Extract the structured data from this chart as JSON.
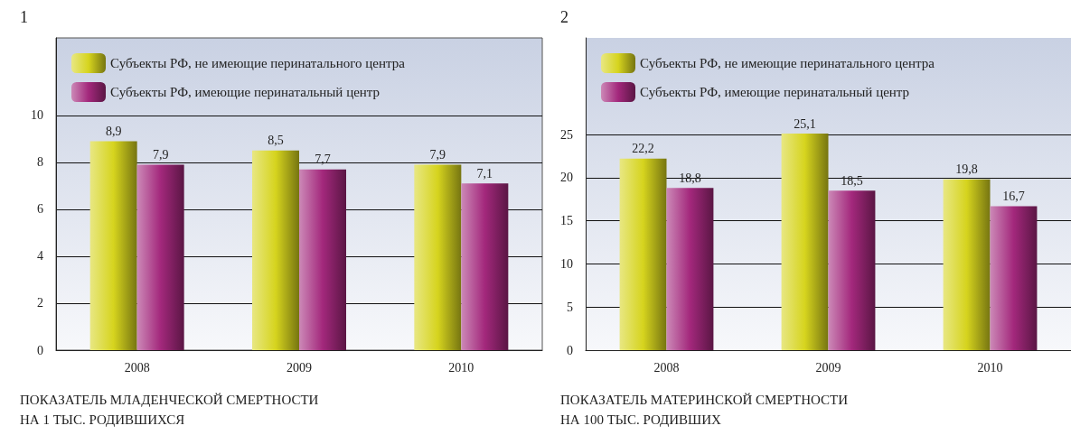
{
  "chart_data": [
    {
      "type": "bar",
      "title": "1",
      "categories": [
        "2008",
        "2009",
        "2010"
      ],
      "series": [
        {
          "name": "Субъекты РФ, не имеющие перинатального центра",
          "color": "#d6d41e",
          "values": [
            8.9,
            8.5,
            7.9
          ],
          "value_labels": [
            "8,9",
            "8,5",
            "7,9"
          ]
        },
        {
          "name": "Субъекты РФ, имеющие перинатальный центр",
          "color": "#a3287c",
          "values": [
            7.9,
            7.7,
            7.1
          ],
          "value_labels": [
            "7,9",
            "7,7",
            "7,1"
          ]
        }
      ],
      "ylim": [
        0,
        13.3
      ],
      "yticks": [
        0,
        2,
        4,
        6,
        8,
        10
      ],
      "grid": "y",
      "legend": "top left",
      "annotations": [
        "ПОКАЗАТЕЛЬ МЛАДЕНЧЕСКОЙ СМЕРТНОСТИ\nНА 1 ТЫС. РОДИВШИХСЯ"
      ]
    },
    {
      "type": "bar",
      "title": "2",
      "categories": [
        "2008",
        "2009",
        "2010"
      ],
      "series": [
        {
          "name": "Субъекты РФ, не имеющие перинатального центра",
          "color": "#d6d41e",
          "values": [
            22.2,
            25.1,
            19.8
          ],
          "value_labels": [
            "22,2",
            "25,1",
            "19,8"
          ]
        },
        {
          "name": "Субъекты РФ, имеющие перинатальный центр",
          "color": "#a3287c",
          "values": [
            18.8,
            18.5,
            16.7
          ],
          "value_labels": [
            "18,8",
            "18,5",
            "16,7"
          ]
        }
      ],
      "ylim": [
        0,
        36.2
      ],
      "yticks": [
        0,
        5,
        10,
        15,
        20,
        25
      ],
      "grid": "y",
      "legend": "top left",
      "annotations": [
        "ПОКАЗАТЕЛЬ МАТЕРИНСКОЙ СМЕРТНОСТИ\nНА 100 ТЫС. РОДИВШИХ"
      ]
    }
  ]
}
